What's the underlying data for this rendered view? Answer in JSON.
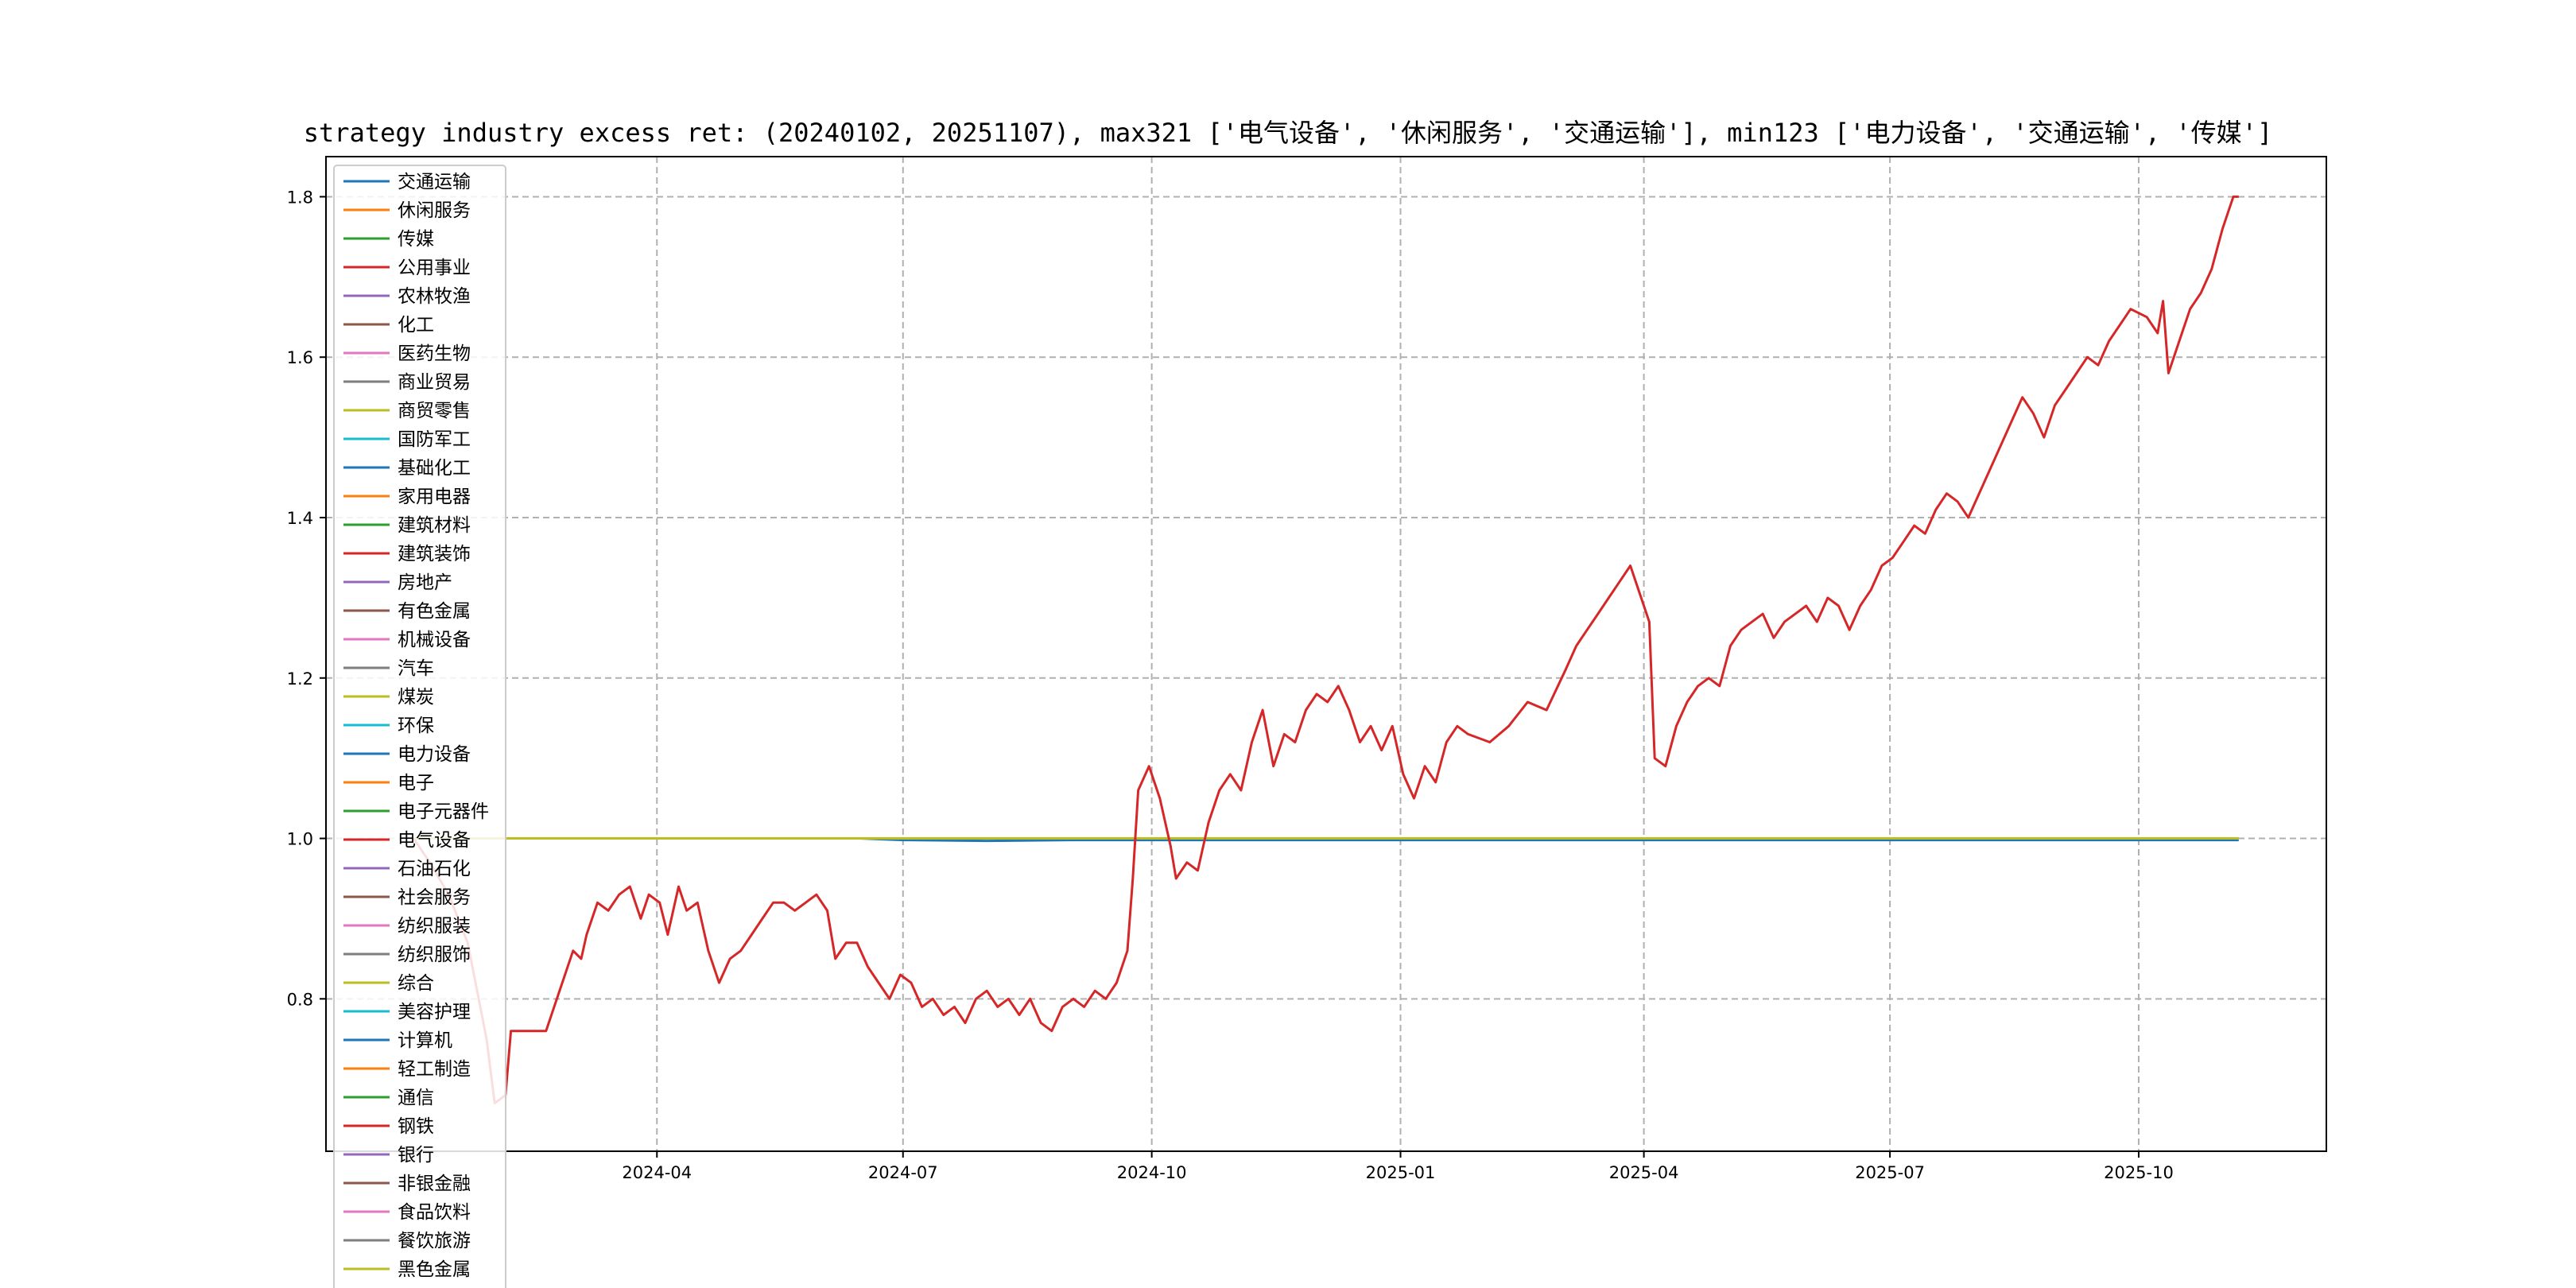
{
  "chart_data": {
    "type": "line",
    "title": "strategy industry excess ret: (20240102, 20251107), max321 ['电气设备', '休闲服务', '交通运输'], min123 ['电力设备', '交通运输', '传媒']",
    "xlabel": "",
    "ylabel": "",
    "x_range": [
      "2024-01-02",
      "2025-11-07"
    ],
    "ylim": [
      0.61,
      1.85
    ],
    "x_ticks": [
      "2024-04",
      "2024-07",
      "2024-10",
      "2025-01",
      "2025-04",
      "2025-07",
      "2025-10"
    ],
    "y_ticks": [
      "0.8",
      "1.0",
      "1.2",
      "1.4",
      "1.6",
      "1.8"
    ],
    "grid": true,
    "legend_position": "upper-left",
    "legend": [
      "交通运输",
      "休闲服务",
      "传媒",
      "公用事业",
      "农林牧渔",
      "化工",
      "医药生物",
      "商业贸易",
      "商贸零售",
      "国防军工",
      "基础化工",
      "家用电器",
      "建筑材料",
      "建筑装饰",
      "房地产",
      "有色金属",
      "机械设备",
      "汽车",
      "煤炭",
      "环保",
      "电力设备",
      "电子",
      "电子元器件",
      "电气设备",
      "石油石化",
      "社会服务",
      "纺织服装",
      "纺织服饰",
      "综合",
      "美容护理",
      "计算机",
      "轻工制造",
      "通信",
      "钢铁",
      "银行",
      "非银金融",
      "食品饮料",
      "餐饮旅游",
      "黑色金属"
    ],
    "palette": [
      "#1f77b4",
      "#ff7f0e",
      "#2ca02c",
      "#d62728",
      "#9467bd",
      "#8c564b",
      "#e377c2",
      "#7f7f7f",
      "#bcbd22",
      "#17becf"
    ],
    "series": [
      {
        "name": "电气设备",
        "color": "#d62728",
        "points": [
          [
            "2024-01-02",
            1.0
          ],
          [
            "2024-01-08",
            0.97
          ],
          [
            "2024-01-15",
            0.93
          ],
          [
            "2024-01-22",
            0.87
          ],
          [
            "2024-01-29",
            0.75
          ],
          [
            "2024-02-01",
            0.67
          ],
          [
            "2024-02-05",
            0.68
          ],
          [
            "2024-02-07",
            0.76
          ],
          [
            "2024-02-20",
            0.76
          ],
          [
            "2024-02-26",
            0.82
          ],
          [
            "2024-03-01",
            0.86
          ],
          [
            "2024-03-04",
            0.85
          ],
          [
            "2024-03-06",
            0.88
          ],
          [
            "2024-03-10",
            0.92
          ],
          [
            "2024-03-14",
            0.91
          ],
          [
            "2024-03-18",
            0.93
          ],
          [
            "2024-03-22",
            0.94
          ],
          [
            "2024-03-26",
            0.9
          ],
          [
            "2024-03-29",
            0.93
          ],
          [
            "2024-04-02",
            0.92
          ],
          [
            "2024-04-05",
            0.88
          ],
          [
            "2024-04-09",
            0.94
          ],
          [
            "2024-04-12",
            0.91
          ],
          [
            "2024-04-16",
            0.92
          ],
          [
            "2024-04-20",
            0.86
          ],
          [
            "2024-04-24",
            0.82
          ],
          [
            "2024-04-28",
            0.85
          ],
          [
            "2024-05-02",
            0.86
          ],
          [
            "2024-05-06",
            0.88
          ],
          [
            "2024-05-10",
            0.9
          ],
          [
            "2024-05-14",
            0.92
          ],
          [
            "2024-05-18",
            0.92
          ],
          [
            "2024-05-22",
            0.91
          ],
          [
            "2024-05-26",
            0.92
          ],
          [
            "2024-05-30",
            0.93
          ],
          [
            "2024-06-03",
            0.91
          ],
          [
            "2024-06-06",
            0.85
          ],
          [
            "2024-06-10",
            0.87
          ],
          [
            "2024-06-14",
            0.87
          ],
          [
            "2024-06-18",
            0.84
          ],
          [
            "2024-06-22",
            0.82
          ],
          [
            "2024-06-26",
            0.8
          ],
          [
            "2024-06-30",
            0.83
          ],
          [
            "2024-07-04",
            0.82
          ],
          [
            "2024-07-08",
            0.79
          ],
          [
            "2024-07-12",
            0.8
          ],
          [
            "2024-07-16",
            0.78
          ],
          [
            "2024-07-20",
            0.79
          ],
          [
            "2024-07-24",
            0.77
          ],
          [
            "2024-07-28",
            0.8
          ],
          [
            "2024-08-01",
            0.81
          ],
          [
            "2024-08-05",
            0.79
          ],
          [
            "2024-08-09",
            0.8
          ],
          [
            "2024-08-13",
            0.78
          ],
          [
            "2024-08-17",
            0.8
          ],
          [
            "2024-08-21",
            0.77
          ],
          [
            "2024-08-25",
            0.76
          ],
          [
            "2024-08-29",
            0.79
          ],
          [
            "2024-09-02",
            0.8
          ],
          [
            "2024-09-06",
            0.79
          ],
          [
            "2024-09-10",
            0.81
          ],
          [
            "2024-09-14",
            0.8
          ],
          [
            "2024-09-18",
            0.82
          ],
          [
            "2024-09-22",
            0.86
          ],
          [
            "2024-09-24",
            0.95
          ],
          [
            "2024-09-26",
            1.06
          ],
          [
            "2024-09-30",
            1.09
          ],
          [
            "2024-10-04",
            1.05
          ],
          [
            "2024-10-08",
            0.99
          ],
          [
            "2024-10-10",
            0.95
          ],
          [
            "2024-10-14",
            0.97
          ],
          [
            "2024-10-18",
            0.96
          ],
          [
            "2024-10-22",
            1.02
          ],
          [
            "2024-10-26",
            1.06
          ],
          [
            "2024-10-30",
            1.08
          ],
          [
            "2024-11-03",
            1.06
          ],
          [
            "2024-11-07",
            1.12
          ],
          [
            "2024-11-11",
            1.16
          ],
          [
            "2024-11-15",
            1.09
          ],
          [
            "2024-11-19",
            1.13
          ],
          [
            "2024-11-23",
            1.12
          ],
          [
            "2024-11-27",
            1.16
          ],
          [
            "2024-12-01",
            1.18
          ],
          [
            "2024-12-05",
            1.17
          ],
          [
            "2024-12-09",
            1.19
          ],
          [
            "2024-12-13",
            1.16
          ],
          [
            "2024-12-17",
            1.12
          ],
          [
            "2024-12-21",
            1.14
          ],
          [
            "2024-12-25",
            1.11
          ],
          [
            "2024-12-29",
            1.14
          ],
          [
            "2025-01-02",
            1.08
          ],
          [
            "2025-01-06",
            1.05
          ],
          [
            "2025-01-10",
            1.09
          ],
          [
            "2025-01-14",
            1.07
          ],
          [
            "2025-01-18",
            1.12
          ],
          [
            "2025-01-22",
            1.14
          ],
          [
            "2025-01-26",
            1.13
          ],
          [
            "2025-02-03",
            1.12
          ],
          [
            "2025-02-10",
            1.14
          ],
          [
            "2025-02-17",
            1.17
          ],
          [
            "2025-02-24",
            1.16
          ],
          [
            "2025-03-03",
            1.21
          ],
          [
            "2025-03-07",
            1.24
          ],
          [
            "2025-03-11",
            1.26
          ],
          [
            "2025-03-15",
            1.28
          ],
          [
            "2025-03-19",
            1.3
          ],
          [
            "2025-03-23",
            1.32
          ],
          [
            "2025-03-27",
            1.34
          ],
          [
            "2025-03-31",
            1.3
          ],
          [
            "2025-04-03",
            1.27
          ],
          [
            "2025-04-05",
            1.1
          ],
          [
            "2025-04-09",
            1.09
          ],
          [
            "2025-04-13",
            1.14
          ],
          [
            "2025-04-17",
            1.17
          ],
          [
            "2025-04-21",
            1.19
          ],
          [
            "2025-04-25",
            1.2
          ],
          [
            "2025-04-29",
            1.19
          ],
          [
            "2025-05-03",
            1.24
          ],
          [
            "2025-05-07",
            1.26
          ],
          [
            "2025-05-11",
            1.27
          ],
          [
            "2025-05-15",
            1.28
          ],
          [
            "2025-05-19",
            1.25
          ],
          [
            "2025-05-23",
            1.27
          ],
          [
            "2025-05-27",
            1.28
          ],
          [
            "2025-05-31",
            1.29
          ],
          [
            "2025-06-04",
            1.27
          ],
          [
            "2025-06-08",
            1.3
          ],
          [
            "2025-06-12",
            1.29
          ],
          [
            "2025-06-16",
            1.26
          ],
          [
            "2025-06-20",
            1.29
          ],
          [
            "2025-06-24",
            1.31
          ],
          [
            "2025-06-28",
            1.34
          ],
          [
            "2025-07-02",
            1.35
          ],
          [
            "2025-07-06",
            1.37
          ],
          [
            "2025-07-10",
            1.39
          ],
          [
            "2025-07-14",
            1.38
          ],
          [
            "2025-07-18",
            1.41
          ],
          [
            "2025-07-22",
            1.43
          ],
          [
            "2025-07-26",
            1.42
          ],
          [
            "2025-07-30",
            1.4
          ],
          [
            "2025-08-03",
            1.43
          ],
          [
            "2025-08-07",
            1.46
          ],
          [
            "2025-08-11",
            1.49
          ],
          [
            "2025-08-15",
            1.52
          ],
          [
            "2025-08-19",
            1.55
          ],
          [
            "2025-08-23",
            1.53
          ],
          [
            "2025-08-27",
            1.5
          ],
          [
            "2025-08-31",
            1.54
          ],
          [
            "2025-09-04",
            1.56
          ],
          [
            "2025-09-08",
            1.58
          ],
          [
            "2025-09-12",
            1.6
          ],
          [
            "2025-09-16",
            1.59
          ],
          [
            "2025-09-20",
            1.62
          ],
          [
            "2025-09-24",
            1.64
          ],
          [
            "2025-09-28",
            1.66
          ],
          [
            "2025-10-04",
            1.65
          ],
          [
            "2025-10-08",
            1.63
          ],
          [
            "2025-10-10",
            1.67
          ],
          [
            "2025-10-12",
            1.58
          ],
          [
            "2025-10-16",
            1.62
          ],
          [
            "2025-10-20",
            1.66
          ],
          [
            "2025-10-24",
            1.68
          ],
          [
            "2025-10-28",
            1.71
          ],
          [
            "2025-11-01",
            1.76
          ],
          [
            "2025-11-05",
            1.8
          ],
          [
            "2025-11-07",
            1.8
          ]
        ]
      },
      {
        "name": "电力设备",
        "color": "#1f77b4",
        "points": [
          [
            "2024-01-02",
            1.0
          ],
          [
            "2024-06-15",
            1.0
          ],
          [
            "2024-07-01",
            0.998
          ],
          [
            "2024-08-01",
            0.997
          ],
          [
            "2024-09-01",
            0.998
          ],
          [
            "2025-11-07",
            0.998
          ]
        ]
      },
      {
        "name": "黑色金属",
        "color": "#bcbd22",
        "points": [
          [
            "2024-01-02",
            1.0
          ],
          [
            "2025-11-07",
            1.0
          ]
        ]
      }
    ]
  }
}
